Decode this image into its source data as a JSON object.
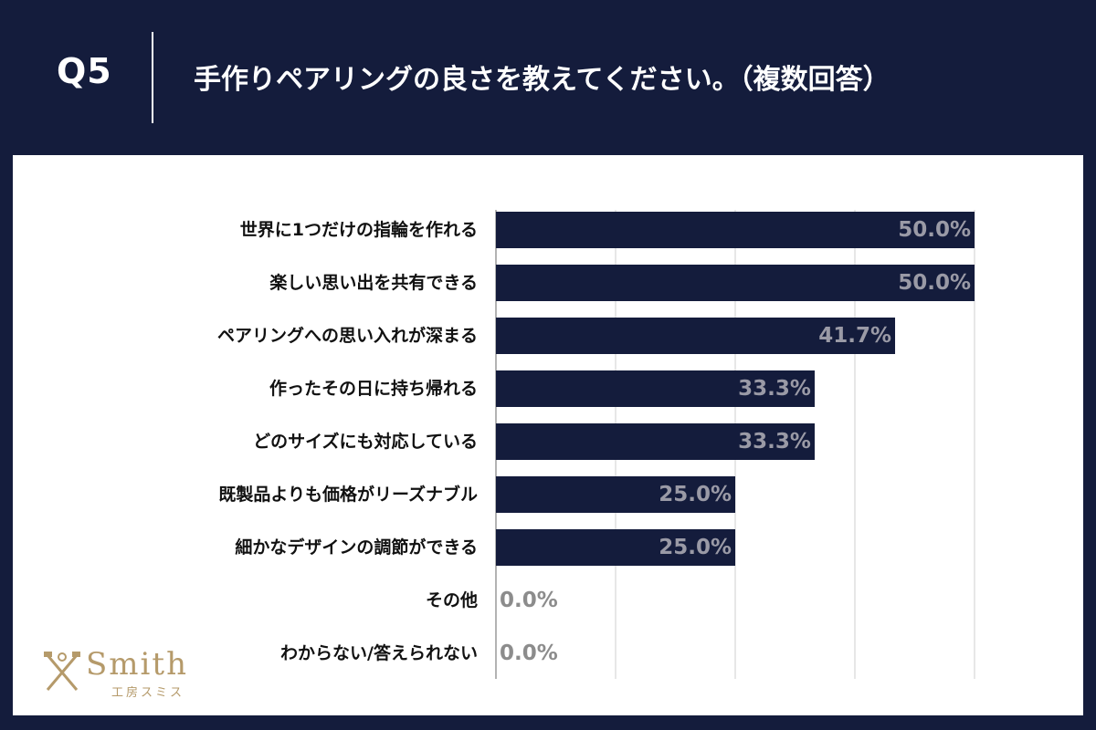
{
  "header": {
    "question_number": "Q5",
    "question_text": "手作りペアリングの良さを教えてください。（複数回答）"
  },
  "logo": {
    "name": "Smith",
    "subtitle": "工房スミス"
  },
  "colors": {
    "background": "#141c3c",
    "bar": "#141c3c",
    "label_in_bar": "#9a9aa6",
    "label_zero": "#8c8c8c",
    "grid": "#cfcfcf",
    "logo": "#b59a6a"
  },
  "chart_data": {
    "type": "bar",
    "orientation": "horizontal",
    "title": "手作りペアリングの良さを教えてください。（複数回答）",
    "categories": [
      "世界に1つだけの指輪を作れる",
      "楽しい思い出を共有できる",
      "ペアリングへの思い入れが深まる",
      "作ったその日に持ち帰れる",
      "どのサイズにも対応している",
      "既製品よりも価格がリーズナブル",
      "細かなデザインの調節ができる",
      "その他",
      "わからない/答えられない"
    ],
    "values": [
      50.0,
      50.0,
      41.7,
      33.3,
      33.3,
      25.0,
      25.0,
      0.0,
      0.0
    ],
    "value_labels": [
      "50.0%",
      "50.0%",
      "41.7%",
      "33.3%",
      "33.3%",
      "25.0%",
      "25.0%",
      "0.0%",
      "0.0%"
    ],
    "xlim": [
      0,
      50
    ],
    "grid_step": 12.5,
    "xlabel": "",
    "ylabel": ""
  }
}
